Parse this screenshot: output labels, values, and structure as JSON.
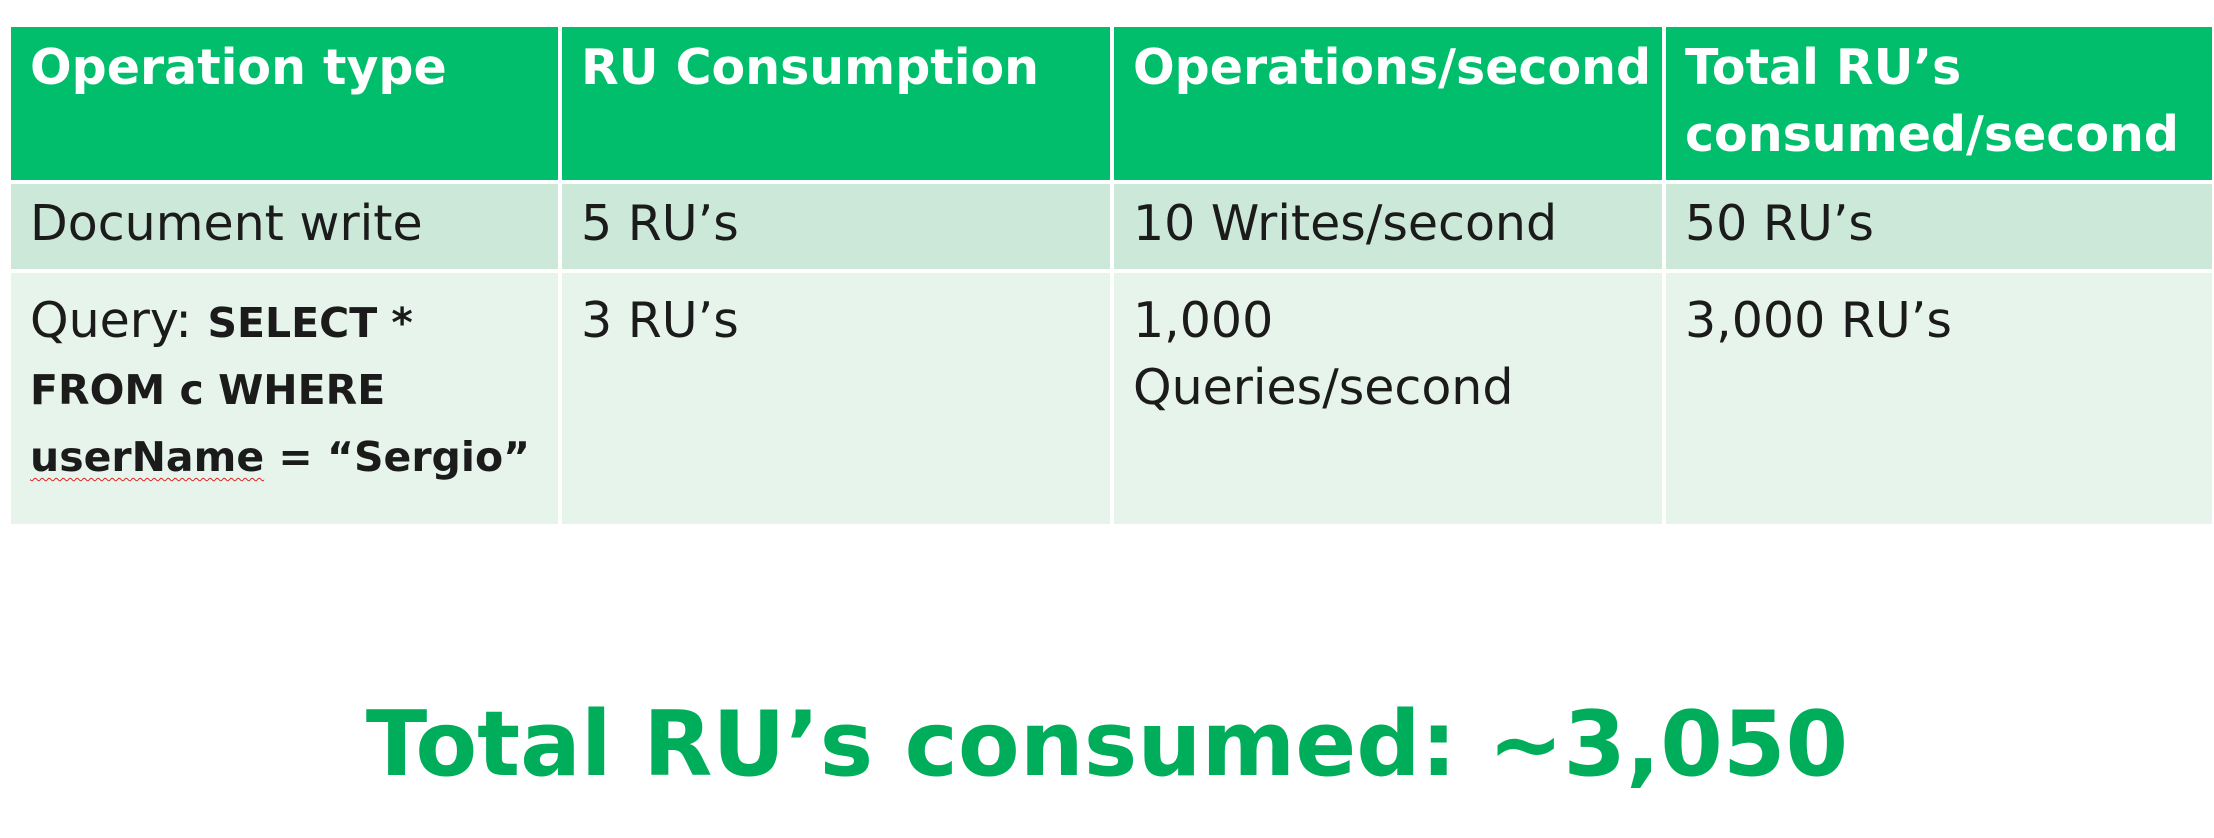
{
  "table": {
    "headers": [
      "Operation type",
      "RU Consumption",
      "Operations/second",
      "Total RU’s consumed/second"
    ],
    "rows": [
      {
        "operation": "Document write",
        "ru": "5 RU’s",
        "ops": "10 Writes/second",
        "total": "50 RU’s"
      },
      {
        "operation_prefix": "Query: ",
        "query_part1": "SELECT * FROM c WHERE ",
        "query_field": "userName",
        "query_part2": " = “Sergio”",
        "ru": "3 RU’s",
        "ops": "1,000 Queries/second",
        "total": "3,000 RU’s"
      }
    ]
  },
  "summary": {
    "text": "Total RU’s consumed: ~3,050"
  },
  "colors": {
    "header_bg": "#00be6b",
    "row1_bg": "#cce8d8",
    "row2_bg": "#e6f4eb",
    "summary_text": "#00ad5a"
  }
}
